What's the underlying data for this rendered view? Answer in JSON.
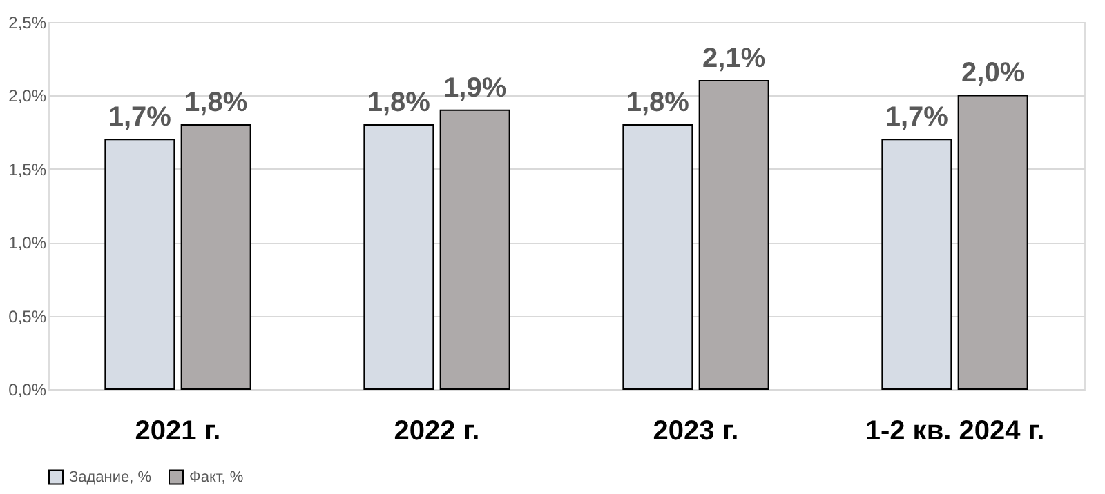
{
  "chart_data": {
    "type": "bar",
    "categories": [
      "2021 г.",
      "2022 г.",
      "2023 г.",
      "1-2 кв. 2024 г."
    ],
    "series": [
      {
        "name": "Задание, %",
        "color": "#d6dce5",
        "values": [
          1.7,
          1.8,
          1.8,
          1.7
        ],
        "value_labels": [
          "1,7%",
          "1,8%",
          "1,8%",
          "1,7%"
        ]
      },
      {
        "name": "Факт, %",
        "color": "#aeaaaa",
        "values": [
          1.8,
          1.9,
          2.1,
          2.0
        ],
        "value_labels": [
          "1,8%",
          "1,9%",
          "2,1%",
          "2,0%"
        ]
      }
    ],
    "ylim": [
      0,
      2.5
    ],
    "yticks": [
      {
        "value": 0,
        "label": "0,0%"
      },
      {
        "value": 0.5,
        "label": "0,5%"
      },
      {
        "value": 1.0,
        "label": "1,0%"
      },
      {
        "value": 1.5,
        "label": "1,5%"
      },
      {
        "value": 2.0,
        "label": "2,0%"
      },
      {
        "value": 2.5,
        "label": "2,5%"
      }
    ],
    "grid": "y",
    "legend": "bottom"
  }
}
